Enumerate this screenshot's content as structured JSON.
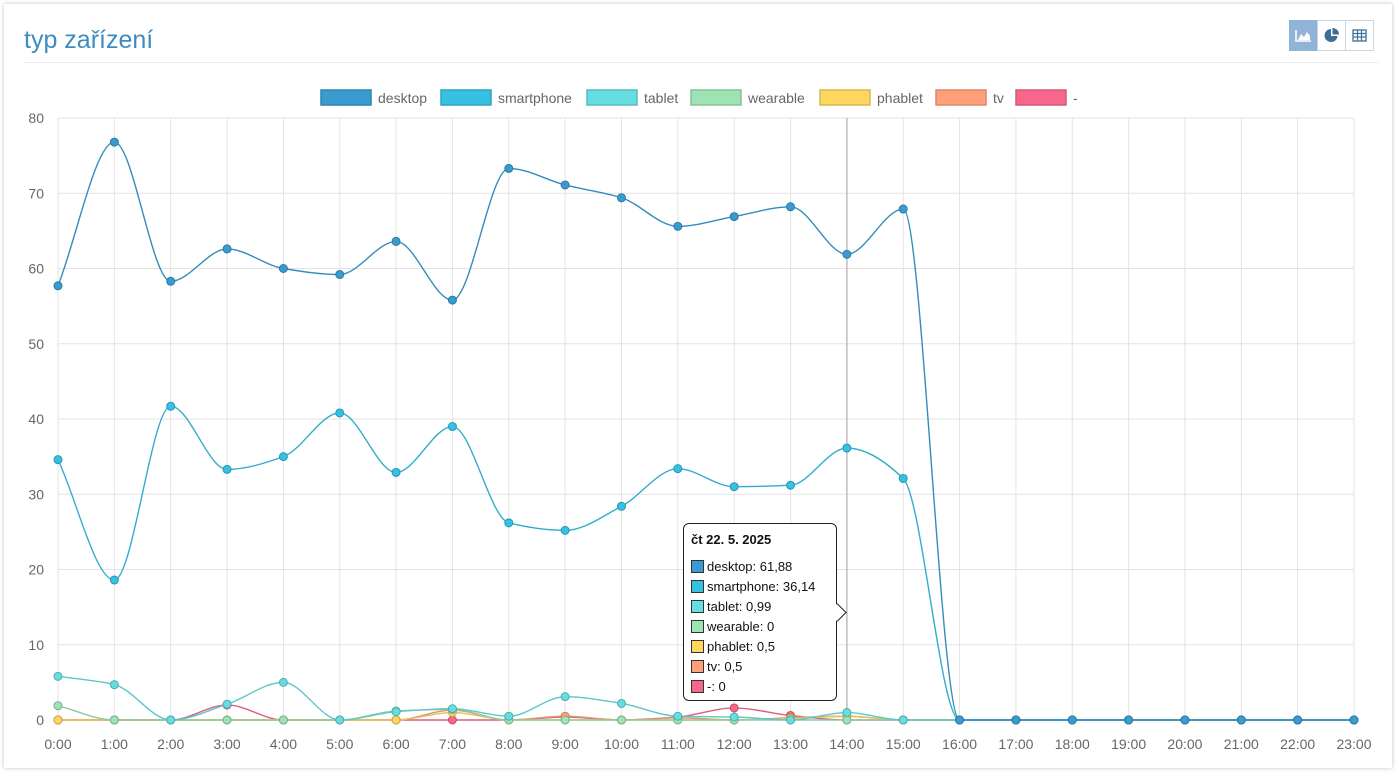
{
  "panel": {
    "title": "typ zařízení"
  },
  "view_toggle": [
    {
      "icon": "area-chart-icon",
      "active": true
    },
    {
      "icon": "pie-chart-icon",
      "active": false
    },
    {
      "icon": "table-icon",
      "active": false
    }
  ],
  "colors": {
    "desktop": "#3a9bd0",
    "smartphone": "#36c0e2",
    "tablet": "#66dde0",
    "wearable": "#9de3b3",
    "phablet": "#ffd75e",
    "tv": "#ffa07a",
    "dash": "#f7678b",
    "axis_text": "#666666",
    "grid": "#e3e3e3",
    "title": "#3d8bc2"
  },
  "chart_data": {
    "type": "line",
    "title": "",
    "xlabel": "",
    "ylabel": "",
    "ylim": [
      0,
      80
    ],
    "yticks": [
      "0",
      "10",
      "20",
      "30",
      "40",
      "50",
      "60",
      "70",
      "80"
    ],
    "grid": true,
    "legend_position": "top-center",
    "categories": [
      "0:00",
      "1:00",
      "2:00",
      "3:00",
      "4:00",
      "5:00",
      "6:00",
      "7:00",
      "8:00",
      "9:00",
      "10:00",
      "11:00",
      "12:00",
      "13:00",
      "14:00",
      "15:00",
      "16:00",
      "17:00",
      "18:00",
      "19:00",
      "20:00",
      "21:00",
      "22:00",
      "23:00"
    ],
    "series": [
      {
        "name": "desktop",
        "key": "desktop",
        "values": [
          57.7,
          76.8,
          58.3,
          62.6,
          60.0,
          59.2,
          63.6,
          55.8,
          73.3,
          71.1,
          69.4,
          65.6,
          66.9,
          68.2,
          61.88,
          67.9,
          0,
          0,
          0,
          0,
          0,
          0,
          0,
          0
        ]
      },
      {
        "name": "smartphone",
        "key": "smartphone",
        "values": [
          34.6,
          18.6,
          41.7,
          33.3,
          35.0,
          40.8,
          32.9,
          39.0,
          26.2,
          25.2,
          28.4,
          33.4,
          31.0,
          31.2,
          36.14,
          32.1,
          0,
          0,
          0,
          0,
          0,
          0,
          0,
          0
        ]
      },
      {
        "name": "tablet",
        "key": "tablet",
        "values": [
          5.8,
          4.7,
          0,
          2.1,
          5.0,
          0,
          1.1,
          1.5,
          0.5,
          3.1,
          2.2,
          0.5,
          0.4,
          0,
          0.99,
          0,
          0,
          0,
          0,
          0,
          0,
          0,
          0,
          0
        ]
      },
      {
        "name": "wearable",
        "key": "wearable",
        "values": [
          1.9,
          0,
          0,
          0,
          0,
          0,
          1.2,
          1.4,
          0,
          0,
          0,
          0,
          0,
          0,
          0,
          0,
          0,
          0,
          0,
          0,
          0,
          0,
          0,
          0
        ]
      },
      {
        "name": "phablet",
        "key": "phablet",
        "values": [
          0,
          0,
          0,
          0,
          0,
          0,
          0,
          1.0,
          0,
          0,
          0,
          0,
          0,
          0.2,
          0.5,
          0,
          0,
          0,
          0,
          0,
          0,
          0,
          0,
          0
        ]
      },
      {
        "name": "tv",
        "key": "tv",
        "values": [
          0,
          0,
          0,
          0,
          0,
          0,
          0,
          1.3,
          0,
          0.5,
          0,
          0.3,
          0,
          0.3,
          0.5,
          0,
          0,
          0,
          0,
          0,
          0,
          0,
          0,
          0
        ]
      },
      {
        "name": "-",
        "key": "dash",
        "values": [
          0,
          0,
          0,
          2.0,
          0,
          0,
          0,
          0,
          0,
          0.4,
          0,
          0.4,
          1.6,
          0.6,
          0,
          0,
          0,
          0,
          0,
          0,
          0,
          0,
          0,
          0
        ]
      }
    ],
    "highlight_category": "14:00",
    "tooltip": {
      "date": "čt 22. 5. 2025",
      "rows": [
        {
          "key": "desktop",
          "text": "desktop: 61,88"
        },
        {
          "key": "smartphone",
          "text": "smartphone: 36,14"
        },
        {
          "key": "tablet",
          "text": "tablet: 0,99"
        },
        {
          "key": "wearable",
          "text": "wearable: 0"
        },
        {
          "key": "phablet",
          "text": "phablet: 0,5"
        },
        {
          "key": "tv",
          "text": "tv: 0,5"
        },
        {
          "key": "dash",
          "text": "-: 0"
        }
      ]
    }
  }
}
